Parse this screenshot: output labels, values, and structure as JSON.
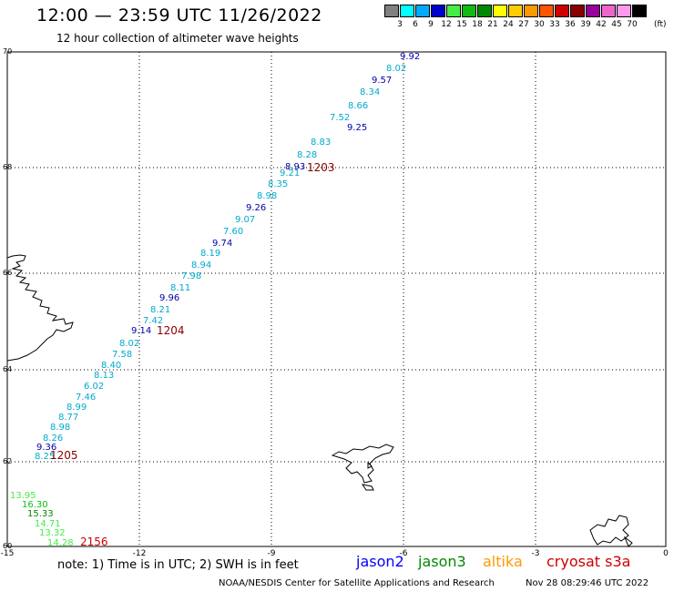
{
  "header": {
    "title": "12:00 — 23:59 UTC 11/26/2022",
    "subtitle": "12 hour collection of altimeter wave heights"
  },
  "legend": {
    "colors": [
      "#808080",
      "#00ffff",
      "#00aaff",
      "#0000cc",
      "#44ee44",
      "#11bb11",
      "#008800",
      "#ffff00",
      "#ffcc00",
      "#ff9900",
      "#ff5500",
      "#cc0000",
      "#880000",
      "#990099",
      "#ee66cc",
      "#ff99ee",
      "#000000"
    ],
    "labels": [
      "3",
      "6",
      "9",
      "12",
      "15",
      "18",
      "21",
      "24",
      "27",
      "30",
      "33",
      "36",
      "39",
      "42",
      "45",
      "70"
    ],
    "unit": "(ft)"
  },
  "axes": {
    "lat_ticks": [
      "70",
      "68",
      "66",
      "64",
      "62",
      "60"
    ],
    "lon_ticks": [
      "-15",
      "-12",
      "-9",
      "-6",
      "-3",
      "0"
    ]
  },
  "times": [
    "1203",
    "1204",
    "1205",
    "2156"
  ],
  "track_jason2": [
    "9.92",
    "9.57",
    "9.25",
    "8.93",
    "9.26",
    "9.74",
    "9.96",
    "9.14",
    "9.36"
  ],
  "track_jason2_color": "#0000aa",
  "track_jason3_mid": [
    "8.02",
    "8.34",
    "8.66",
    "7.52",
    "8.83",
    "8.28",
    "9.21",
    "8.35",
    "8.98",
    "9.07",
    "7.60",
    "8.19",
    "8.94",
    "7.98",
    "8.11",
    "8.21",
    "7.42",
    "8.02",
    "7.58",
    "8.40",
    "8.13",
    "6.02",
    "7.46",
    "8.99",
    "8.77",
    "8.98",
    "8.26",
    "8.25"
  ],
  "track_jason3_mid_color": "#00aacc",
  "track_high": [
    "13.95",
    "16.30",
    "15.33",
    "14.71",
    "13.32",
    "14.28"
  ],
  "sats": [
    {
      "name": "jason2",
      "color": "#0000ff"
    },
    {
      "name": "jason3",
      "color": "#008800"
    },
    {
      "name": "altika",
      "color": "#ff9900"
    },
    {
      "name": "cryosat s3a",
      "color": "#cc0000"
    }
  ],
  "footer": {
    "note": "note:  1) Time is in UTC; 2) SWH is in feet",
    "credit": "NOAA/NESDIS Center for Satellite Applications and Research",
    "timestamp": "Nov 28 08:29:46 UTC 2022"
  }
}
